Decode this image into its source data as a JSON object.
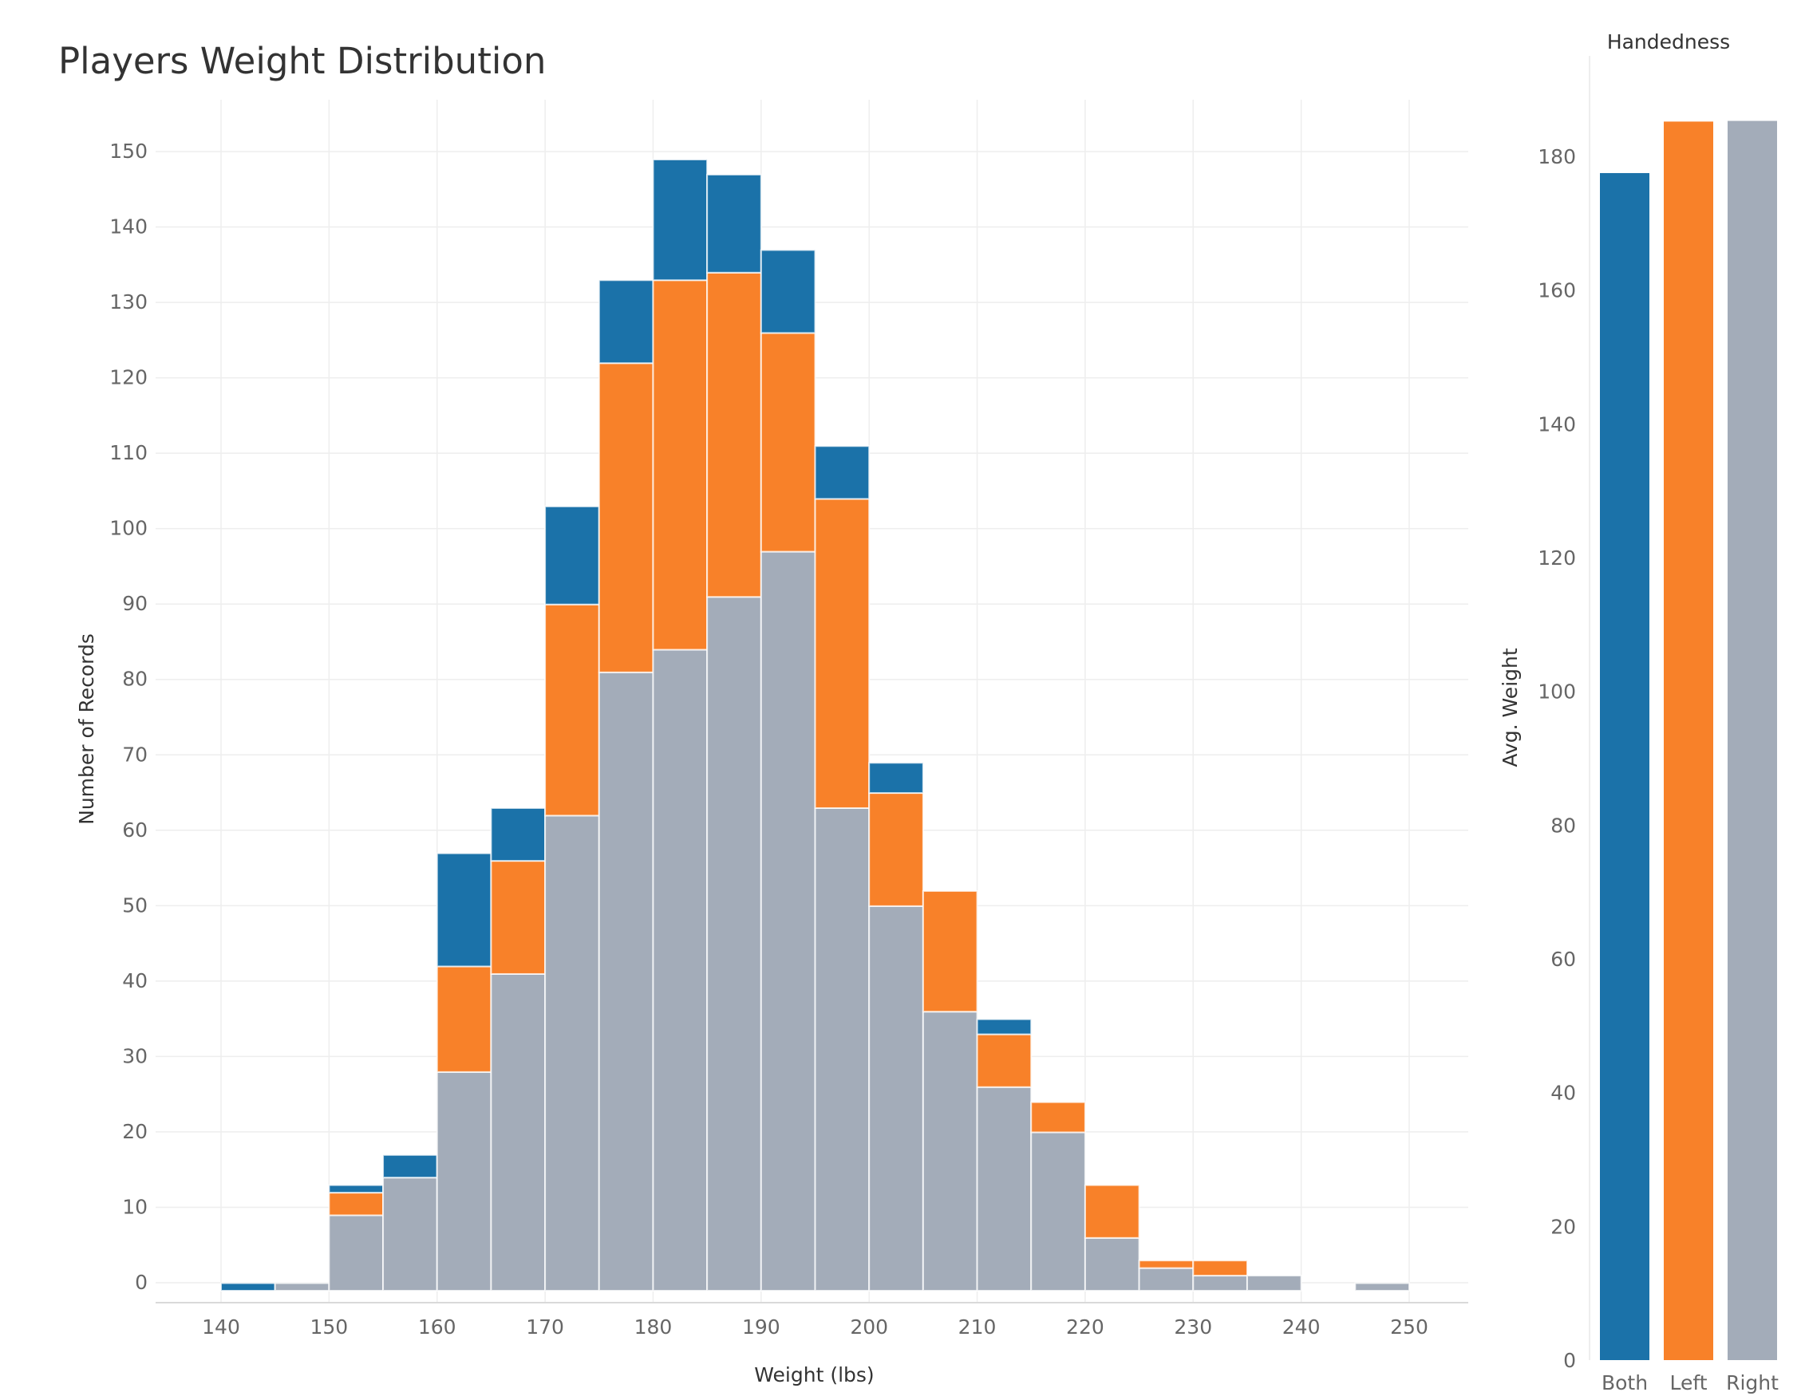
{
  "chart_data": [
    {
      "type": "bar",
      "stacked": true,
      "title": "Players Weight Distribution",
      "xlabel": "Weight (lbs)",
      "ylabel": "Number of Records",
      "bin_width": 5,
      "x": [
        140,
        145,
        150,
        155,
        160,
        165,
        170,
        175,
        180,
        185,
        190,
        195,
        200,
        205,
        210,
        215,
        220,
        225,
        230,
        235,
        240,
        245
      ],
      "xticks": [
        140,
        150,
        160,
        170,
        180,
        190,
        200,
        210,
        220,
        230,
        240,
        250
      ],
      "yticks": [
        0,
        10,
        20,
        30,
        40,
        50,
        60,
        70,
        80,
        90,
        100,
        110,
        120,
        130,
        140,
        150
      ],
      "xlim": [
        135,
        255
      ],
      "ylim": [
        0,
        152
      ],
      "series": [
        {
          "name": "Right",
          "color": "#a3acb9",
          "values": [
            0,
            1,
            10,
            15,
            29,
            42,
            63,
            82,
            85,
            92,
            98,
            64,
            51,
            37,
            27,
            21,
            7,
            3,
            2,
            2,
            0,
            1
          ]
        },
        {
          "name": "Left",
          "color": "#f88129",
          "values": [
            0,
            0,
            3,
            0,
            14,
            15,
            28,
            41,
            49,
            43,
            29,
            41,
            15,
            16,
            7,
            4,
            7,
            1,
            2,
            0,
            0,
            0
          ]
        },
        {
          "name": "Both",
          "color": "#1b72a9",
          "values": [
            1,
            0,
            1,
            3,
            15,
            7,
            13,
            11,
            16,
            13,
            11,
            7,
            4,
            0,
            2,
            0,
            0,
            0,
            0,
            0,
            0,
            0
          ]
        }
      ],
      "grid": true
    },
    {
      "type": "bar",
      "title": "Handedness",
      "ylabel": "Avg. Weight",
      "categories": [
        "Both",
        "Left",
        "Right"
      ],
      "values": [
        177.5,
        185.2,
        185.3
      ],
      "colors": [
        "#1b72a9",
        "#f88129",
        "#a3acb9"
      ],
      "yticks": [
        0,
        20,
        40,
        60,
        80,
        100,
        120,
        140,
        160,
        180
      ],
      "ylim": [
        0,
        187
      ],
      "grid": false
    }
  ]
}
